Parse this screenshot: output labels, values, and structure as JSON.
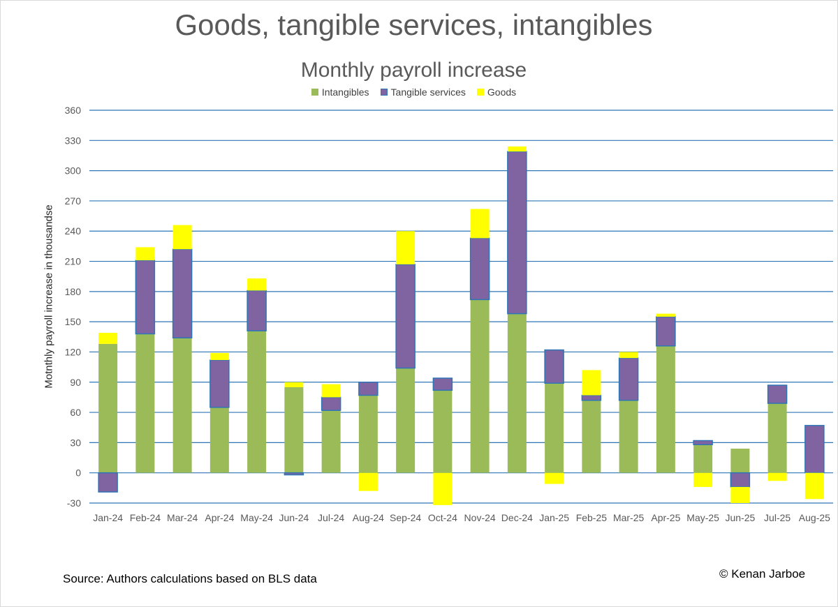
{
  "title": "Goods, tangible services, intangibles",
  "subtitle": "Monthly payroll increase",
  "ylabel": "Motnthly payroll increase in thousandse",
  "source": "Source: Authors calculations based on BLS data",
  "credit": "© Kenan Jarboe",
  "colors": {
    "intangibles": "#9bbb59",
    "tangible": "#8064a2",
    "tangible_border": "#2e75b6",
    "goods": "#ffff00",
    "grid": "#2e75b6"
  },
  "chart_data": {
    "type": "bar",
    "stacked": true,
    "legend_position": "top",
    "grid": true,
    "ylim": [
      -30,
      360
    ],
    "yticks": [
      -30,
      0,
      30,
      60,
      90,
      120,
      150,
      180,
      210,
      240,
      270,
      300,
      330,
      360
    ],
    "categories": [
      "Jan-24",
      "Feb-24",
      "Mar-24",
      "Apr-24",
      "May-24",
      "Jun-24",
      "Jul-24",
      "Aug-24",
      "Sep-24",
      "Oct-24",
      "Nov-24",
      "Dec-24",
      "Jan-25",
      "Feb-25",
      "Mar-25",
      "Apr-25",
      "May-25",
      "Jun-25",
      "Jul-25",
      "Aug-25"
    ],
    "series": [
      {
        "name": "Intangibles",
        "values": [
          128,
          138,
          134,
          65,
          141,
          85,
          62,
          77,
          104,
          82,
          172,
          158,
          89,
          72,
          72,
          126,
          28,
          24,
          69,
          0
        ]
      },
      {
        "name": "Tangible services",
        "values": [
          -19,
          73,
          88,
          47,
          40,
          -2,
          13,
          13,
          103,
          12,
          61,
          161,
          33,
          5,
          42,
          29,
          4,
          -14,
          18,
          47
        ]
      },
      {
        "name": "Goods",
        "values": [
          11,
          13,
          24,
          7,
          12,
          5,
          13,
          -18,
          33,
          -32,
          29,
          5,
          -11,
          25,
          6,
          3,
          -14,
          -16,
          -8,
          -26
        ]
      }
    ]
  }
}
